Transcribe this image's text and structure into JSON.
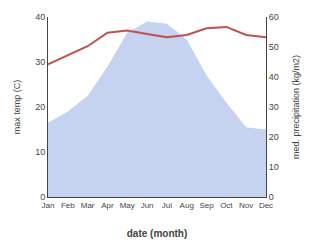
{
  "chart_data": {
    "type": "line",
    "x": [
      1,
      2,
      3,
      4,
      5,
      6,
      7,
      8,
      9,
      10,
      11,
      12
    ],
    "xlim": [
      1,
      12
    ],
    "xticks": [
      {
        "value": 1,
        "label": "Jan"
      },
      {
        "value": 2,
        "label": "Feb"
      },
      {
        "value": 3,
        "label": "Mar"
      },
      {
        "value": 4,
        "label": "Apr"
      },
      {
        "value": 5,
        "label": "May"
      },
      {
        "value": 6,
        "label": "Jun"
      },
      {
        "value": 7,
        "label": "Jul"
      },
      {
        "value": 8,
        "label": "Aug"
      },
      {
        "value": 9,
        "label": "Sep"
      },
      {
        "value": 10,
        "label": "Oct"
      },
      {
        "value": 11,
        "label": "Nov"
      },
      {
        "value": 12,
        "label": "Dec"
      }
    ],
    "xlabel": "date (month)",
    "ylabel": "max temp (C)",
    "y2label": "med. precipitation (kg/m2)",
    "ylim": [
      0,
      40
    ],
    "yticks": [
      0,
      10,
      20,
      30,
      40
    ],
    "y2lim": [
      0,
      60
    ],
    "y2ticks": [
      0,
      10,
      20,
      30,
      40,
      50,
      60
    ],
    "grid": false,
    "series": [
      {
        "type": "area",
        "color": "#c5d3f0",
        "values": [
          16.5,
          19.0,
          22.5,
          29.0,
          36.5,
          39.0,
          38.5,
          35.0,
          27.0,
          21.0,
          15.5,
          15.0
        ]
      },
      {
        "type": "line",
        "color": "#c0504d",
        "values": [
          29.5,
          31.5,
          33.5,
          36.5,
          37.0,
          36.2,
          35.5,
          36.0,
          37.5,
          37.8,
          36.0,
          35.5
        ]
      }
    ]
  }
}
